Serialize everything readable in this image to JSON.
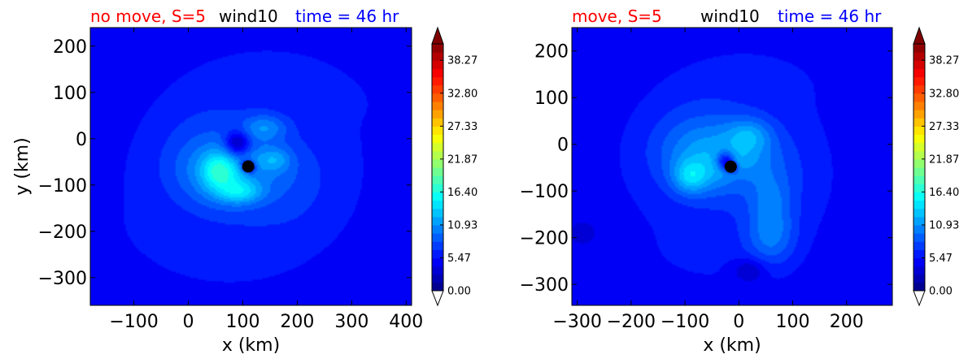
{
  "chart_data": [
    {
      "type": "heatmap",
      "title_left": "no move, S=5",
      "title_center": "wind10",
      "title_right": "time = 46 hr",
      "title_left_color": "#ff0000",
      "title_center_color": "#000000",
      "title_right_color": "#0000ff",
      "xlabel": "x (km)",
      "ylabel": "y (km)",
      "xlim": [
        -180,
        410
      ],
      "ylim": [
        -360,
        240
      ],
      "xticks": [
        -100,
        0,
        100,
        200,
        300,
        400
      ],
      "xtick_labels": [
        "−100",
        "0",
        "100",
        "200",
        "300",
        "400"
      ],
      "yticks": [
        200,
        100,
        0,
        -100,
        -200,
        -300
      ],
      "ytick_labels": [
        "200",
        "100",
        "0",
        "−100",
        "−200",
        "−300"
      ],
      "center_marker": {
        "x": 110,
        "y": -60
      },
      "colorbar": {
        "min": 0.0,
        "max": 41.0,
        "tick_values": [
          0.0,
          5.47,
          10.93,
          16.4,
          21.87,
          27.33,
          32.8,
          38.27
        ],
        "tick_labels": [
          "0.00",
          "5.47",
          "10.93",
          "16.40",
          "21.87",
          "27.33",
          "32.80",
          "38.27"
        ],
        "extend": "both",
        "colormap": "jet"
      },
      "field": {
        "background": 5.0,
        "blobs": [
          {
            "x": 110,
            "y": -60,
            "amp": 2.5,
            "sx": 190,
            "sy": 170
          },
          {
            "x": 70,
            "y": -75,
            "amp": 4.5,
            "sx": 95,
            "sy": 80
          },
          {
            "x": 55,
            "y": -70,
            "amp": 5.5,
            "sx": 30,
            "sy": 38
          },
          {
            "x": 95,
            "y": -115,
            "amp": 5.0,
            "sx": 40,
            "sy": 25
          },
          {
            "x": 140,
            "y": 25,
            "amp": 4.0,
            "sx": 40,
            "sy": 28
          },
          {
            "x": 160,
            "y": -45,
            "amp": 3.0,
            "sx": 28,
            "sy": 25
          },
          {
            "x": 90,
            "y": -10,
            "amp": -6.5,
            "sx": 22,
            "sy": 25
          },
          {
            "x": 110,
            "y": -60,
            "amp": -7.0,
            "sx": 14,
            "sy": 14
          }
        ]
      }
    },
    {
      "type": "heatmap",
      "title_left": "move, S=5",
      "title_center": "wind10",
      "title_right": "time = 46 hr",
      "title_left_color": "#ff0000",
      "title_center_color": "#000000",
      "title_right_color": "#0000ff",
      "xlabel": "x (km)",
      "ylabel": "",
      "xlim": [
        -310,
        285
      ],
      "ylim": [
        -345,
        250
      ],
      "xticks": [
        -300,
        -200,
        -100,
        0,
        100,
        200
      ],
      "xtick_labels": [
        "−300",
        "−200",
        "−100",
        "0",
        "100",
        "200"
      ],
      "yticks": [
        200,
        100,
        0,
        -100,
        -200,
        -300
      ],
      "ytick_labels": [
        "200",
        "100",
        "0",
        "−100",
        "−200",
        "−300"
      ],
      "center_marker": {
        "x": -15,
        "y": -48
      },
      "colorbar": {
        "min": 0.0,
        "max": 41.0,
        "tick_values": [
          0.0,
          5.47,
          10.93,
          16.4,
          21.87,
          27.33,
          32.8,
          38.27
        ],
        "tick_labels": [
          "0.00",
          "5.47",
          "10.93",
          "16.40",
          "21.87",
          "27.33",
          "32.80",
          "38.27"
        ],
        "extend": "both",
        "colormap": "jet"
      },
      "field": {
        "background": 5.0,
        "blobs": [
          {
            "x": -20,
            "y": -40,
            "amp": 3.0,
            "sx": 160,
            "sy": 150
          },
          {
            "x": -40,
            "y": -20,
            "amp": 4.5,
            "sx": 95,
            "sy": 75
          },
          {
            "x": -90,
            "y": -70,
            "amp": 5.0,
            "sx": 32,
            "sy": 35
          },
          {
            "x": 20,
            "y": 20,
            "amp": 3.5,
            "sx": 40,
            "sy": 35
          },
          {
            "x": 60,
            "y": -200,
            "amp": 4.0,
            "sx": 45,
            "sy": 60
          },
          {
            "x": 60,
            "y": -120,
            "amp": 2.5,
            "sx": 38,
            "sy": 55
          },
          {
            "x": -25,
            "y": -35,
            "amp": -6.0,
            "sx": 16,
            "sy": 20
          },
          {
            "x": -15,
            "y": -48,
            "amp": -6.0,
            "sx": 12,
            "sy": 12
          },
          {
            "x": 20,
            "y": -270,
            "amp": -3.0,
            "sx": 30,
            "sy": 25
          },
          {
            "x": -290,
            "y": -190,
            "amp": -2.5,
            "sx": 25,
            "sy": 25
          }
        ]
      }
    }
  ]
}
